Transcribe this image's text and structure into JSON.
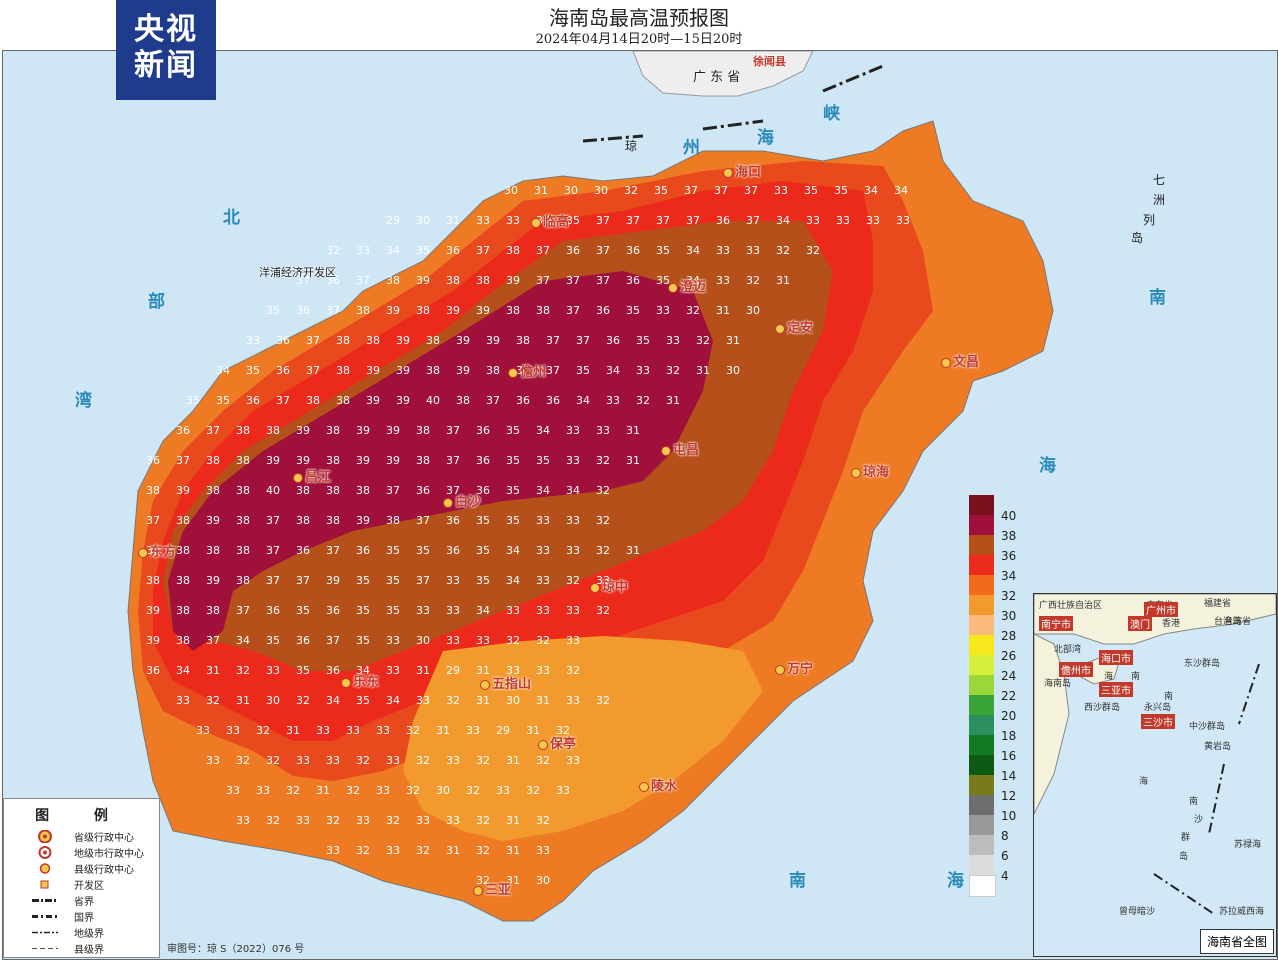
{
  "title": "海南岛最高温预报图",
  "subtitle": "2024年04月14日20时—15日20时",
  "logo": {
    "line1": "央视",
    "line2": "新闻",
    "bg": "#1f3b8c"
  },
  "colors": {
    "sea": "#cfe6f5",
    "land_gd": "#eeeeee",
    "band28": "#f9b97a",
    "band30": "#f39a2e",
    "band32": "#ee7a24",
    "band34": "#e8491d",
    "band36": "#ec2a1c",
    "band38": "#b5501a",
    "band40": "#a0103a"
  },
  "sea_labels": [
    {
      "text": "琼",
      "k": "qiong"
    },
    {
      "text": "州",
      "k": "zhou"
    },
    {
      "text": "海",
      "k": "hai1"
    },
    {
      "text": "峡",
      "k": "xia"
    },
    {
      "text": "北",
      "k": "bei"
    },
    {
      "text": "部",
      "k": "bu"
    },
    {
      "text": "湾",
      "k": "wan"
    },
    {
      "text": "南",
      "k": "nan1"
    },
    {
      "text": "海",
      "k": "hai2"
    },
    {
      "text": "南",
      "k": "nan2"
    },
    {
      "text": "海",
      "k": "hai3"
    },
    {
      "text": "七",
      "k": "q1"
    },
    {
      "text": "洲",
      "k": "q2"
    },
    {
      "text": "列",
      "k": "q3"
    },
    {
      "text": "岛",
      "k": "q4"
    }
  ],
  "mainland": {
    "province": "广 东 省",
    "county": "徐闻县"
  },
  "cities": [
    {
      "name": "海口"
    },
    {
      "name": "临高"
    },
    {
      "name": "澄迈"
    },
    {
      "name": "定安"
    },
    {
      "name": "文昌"
    },
    {
      "name": "儋州"
    },
    {
      "name": "屯昌"
    },
    {
      "name": "琼海"
    },
    {
      "name": "昌江"
    },
    {
      "name": "白沙"
    },
    {
      "name": "东方"
    },
    {
      "name": "琼中"
    },
    {
      "name": "万宁"
    },
    {
      "name": "乐东"
    },
    {
      "name": "五指山"
    },
    {
      "name": "保亭"
    },
    {
      "name": "陵水"
    },
    {
      "name": "三亚"
    }
  ],
  "dev_zone": "洋浦经济开发区",
  "grid_values": [
    {
      "row": 0,
      "vals": [
        "30",
        "31",
        "30",
        "30",
        "32",
        "35",
        "37",
        "37",
        "37",
        "33",
        "35",
        "35",
        "34",
        "34"
      ]
    },
    {
      "row": 1,
      "vals": [
        "29",
        "30",
        "31",
        "33",
        "33",
        "34",
        "35",
        "37",
        "37",
        "37",
        "37",
        "36",
        "37",
        "34",
        "33",
        "33",
        "33",
        "33"
      ]
    },
    {
      "row": 2,
      "vals": [
        "32",
        "33",
        "34",
        "35",
        "36",
        "37",
        "38",
        "37",
        "36",
        "37",
        "36",
        "35",
        "34",
        "33",
        "33",
        "32",
        "32"
      ]
    },
    {
      "row": 3,
      "vals": [
        "37",
        "36",
        "37",
        "38",
        "39",
        "38",
        "38",
        "39",
        "37",
        "37",
        "37",
        "36",
        "35",
        "34",
        "33",
        "32",
        "31"
      ]
    },
    {
      "row": 4,
      "vals": [
        "35",
        "36",
        "37",
        "38",
        "39",
        "38",
        "39",
        "39",
        "38",
        "38",
        "37",
        "36",
        "35",
        "33",
        "32",
        "31",
        "30"
      ]
    },
    {
      "row": 5,
      "vals": [
        "33",
        "36",
        "37",
        "38",
        "38",
        "39",
        "38",
        "39",
        "39",
        "38",
        "37",
        "37",
        "36",
        "35",
        "33",
        "32",
        "31"
      ]
    },
    {
      "row": 6,
      "vals": [
        "34",
        "35",
        "36",
        "37",
        "38",
        "39",
        "39",
        "38",
        "39",
        "38",
        "37",
        "37",
        "35",
        "34",
        "33",
        "32",
        "31",
        "30"
      ]
    },
    {
      "row": 7,
      "vals": [
        "35",
        "35",
        "36",
        "37",
        "38",
        "38",
        "39",
        "39",
        "40",
        "38",
        "37",
        "36",
        "36",
        "34",
        "33",
        "32",
        "31"
      ]
    },
    {
      "row": 8,
      "vals": [
        "36",
        "37",
        "38",
        "38",
        "39",
        "38",
        "39",
        "39",
        "38",
        "37",
        "36",
        "35",
        "34",
        "33",
        "33",
        "31"
      ]
    },
    {
      "row": 9,
      "vals": [
        "36",
        "37",
        "38",
        "38",
        "39",
        "39",
        "38",
        "39",
        "39",
        "38",
        "37",
        "36",
        "35",
        "35",
        "33",
        "32",
        "31"
      ]
    },
    {
      "row": 10,
      "vals": [
        "38",
        "39",
        "38",
        "38",
        "40",
        "38",
        "38",
        "38",
        "37",
        "36",
        "37",
        "36",
        "35",
        "34",
        "34",
        "32"
      ]
    },
    {
      "row": 11,
      "vals": [
        "37",
        "38",
        "39",
        "38",
        "37",
        "38",
        "38",
        "39",
        "38",
        "37",
        "36",
        "35",
        "35",
        "33",
        "33",
        "32"
      ]
    },
    {
      "row": 12,
      "vals": [
        "37",
        "38",
        "38",
        "38",
        "37",
        "36",
        "37",
        "36",
        "35",
        "35",
        "36",
        "35",
        "34",
        "33",
        "33",
        "32",
        "31"
      ]
    },
    {
      "row": 13,
      "vals": [
        "38",
        "38",
        "39",
        "38",
        "37",
        "37",
        "39",
        "35",
        "35",
        "37",
        "33",
        "35",
        "34",
        "33",
        "32",
        "33"
      ]
    },
    {
      "row": 14,
      "vals": [
        "39",
        "38",
        "38",
        "37",
        "36",
        "35",
        "36",
        "35",
        "35",
        "33",
        "33",
        "34",
        "33",
        "33",
        "33",
        "32"
      ]
    },
    {
      "row": 15,
      "vals": [
        "39",
        "38",
        "37",
        "34",
        "35",
        "36",
        "37",
        "35",
        "33",
        "30",
        "33",
        "33",
        "32",
        "32",
        "33"
      ]
    },
    {
      "row": 16,
      "vals": [
        "36",
        "34",
        "31",
        "32",
        "33",
        "35",
        "36",
        "34",
        "33",
        "31",
        "29",
        "31",
        "33",
        "33",
        "32"
      ]
    },
    {
      "row": 17,
      "vals": [
        "33",
        "32",
        "31",
        "30",
        "32",
        "34",
        "35",
        "34",
        "33",
        "32",
        "31",
        "30",
        "31",
        "33",
        "32"
      ]
    },
    {
      "row": 18,
      "vals": [
        "33",
        "33",
        "32",
        "31",
        "33",
        "33",
        "33",
        "32",
        "31",
        "33",
        "29",
        "31",
        "32"
      ]
    },
    {
      "row": 19,
      "vals": [
        "33",
        "32",
        "32",
        "33",
        "33",
        "32",
        "33",
        "32",
        "33",
        "32",
        "31",
        "32",
        "33"
      ]
    },
    {
      "row": 20,
      "vals": [
        "33",
        "33",
        "32",
        "31",
        "32",
        "33",
        "32",
        "30",
        "32",
        "33",
        "32",
        "33"
      ]
    },
    {
      "row": 21,
      "vals": [
        "33",
        "32",
        "33",
        "32",
        "33",
        "32",
        "33",
        "33",
        "32",
        "31",
        "32"
      ]
    },
    {
      "row": 22,
      "vals": [
        "33",
        "32",
        "33",
        "32",
        "31",
        "32",
        "31",
        "33"
      ]
    },
    {
      "row": 23,
      "vals": [
        "32",
        "31",
        "30"
      ]
    }
  ],
  "scale": [
    {
      "label": "40",
      "color": "#7a0f1e"
    },
    {
      "label": "38",
      "color": "#a0103a"
    },
    {
      "label": "36",
      "color": "#b5501a"
    },
    {
      "label": "34",
      "color": "#ec2a1c"
    },
    {
      "label": "32",
      "color": "#f26a1e"
    },
    {
      "label": "30",
      "color": "#f39a2e"
    },
    {
      "label": "28",
      "color": "#fbb97a"
    },
    {
      "label": "26",
      "color": "#f7e81c"
    },
    {
      "label": "24",
      "color": "#d5ef3a"
    },
    {
      "label": "22",
      "color": "#9bd63a"
    },
    {
      "label": "20",
      "color": "#3aa33a"
    },
    {
      "label": "18",
      "color": "#2c8f5e"
    },
    {
      "label": "16",
      "color": "#127a21"
    },
    {
      "label": "14",
      "color": "#0c5a14"
    },
    {
      "label": "12",
      "color": "#7a7a1a"
    },
    {
      "label": "10",
      "color": "#6e6e6e"
    },
    {
      "label": "8",
      "color": "#999999"
    },
    {
      "label": "6",
      "color": "#bcbcbc"
    },
    {
      "label": "4",
      "color": "#dcdcdc"
    },
    {
      "label": "",
      "color": "#ffffff"
    }
  ],
  "legend": {
    "title": "图 例",
    "items": [
      {
        "label": "省级行政中心",
        "icon": "provincial-capital-icon"
      },
      {
        "label": "地级市行政中心",
        "icon": "prefecture-city-icon"
      },
      {
        "label": "县级行政中心",
        "icon": "county-seat-icon"
      },
      {
        "label": "开发区",
        "icon": "dev-zone-icon"
      },
      {
        "label": "省界",
        "icon": "province-border-icon"
      },
      {
        "label": "国界",
        "icon": "national-border-icon"
      },
      {
        "label": "地级界",
        "icon": "prefecture-border-icon"
      },
      {
        "label": "县级界",
        "icon": "county-border-icon"
      }
    ]
  },
  "review_no": "审图号：琼 S（2022）076 号",
  "inset": {
    "title": "海南省全图",
    "labels": [
      "广西壮族自治区",
      "广东省",
      "福建省",
      "台湾省",
      "南宁市",
      "广州市",
      "澳门",
      "香港",
      "台湾岛",
      "北部湾",
      "海口市",
      "儋州市",
      "海",
      "南",
      "三亚市",
      "海南岛",
      "东沙群岛",
      "西沙群岛",
      "永兴岛",
      "三沙市",
      "中沙群岛",
      "黄岩岛",
      "南",
      "海",
      "南",
      "沙",
      "群",
      "岛",
      "苏禄海",
      "曾母暗沙",
      "苏拉威西海"
    ]
  }
}
